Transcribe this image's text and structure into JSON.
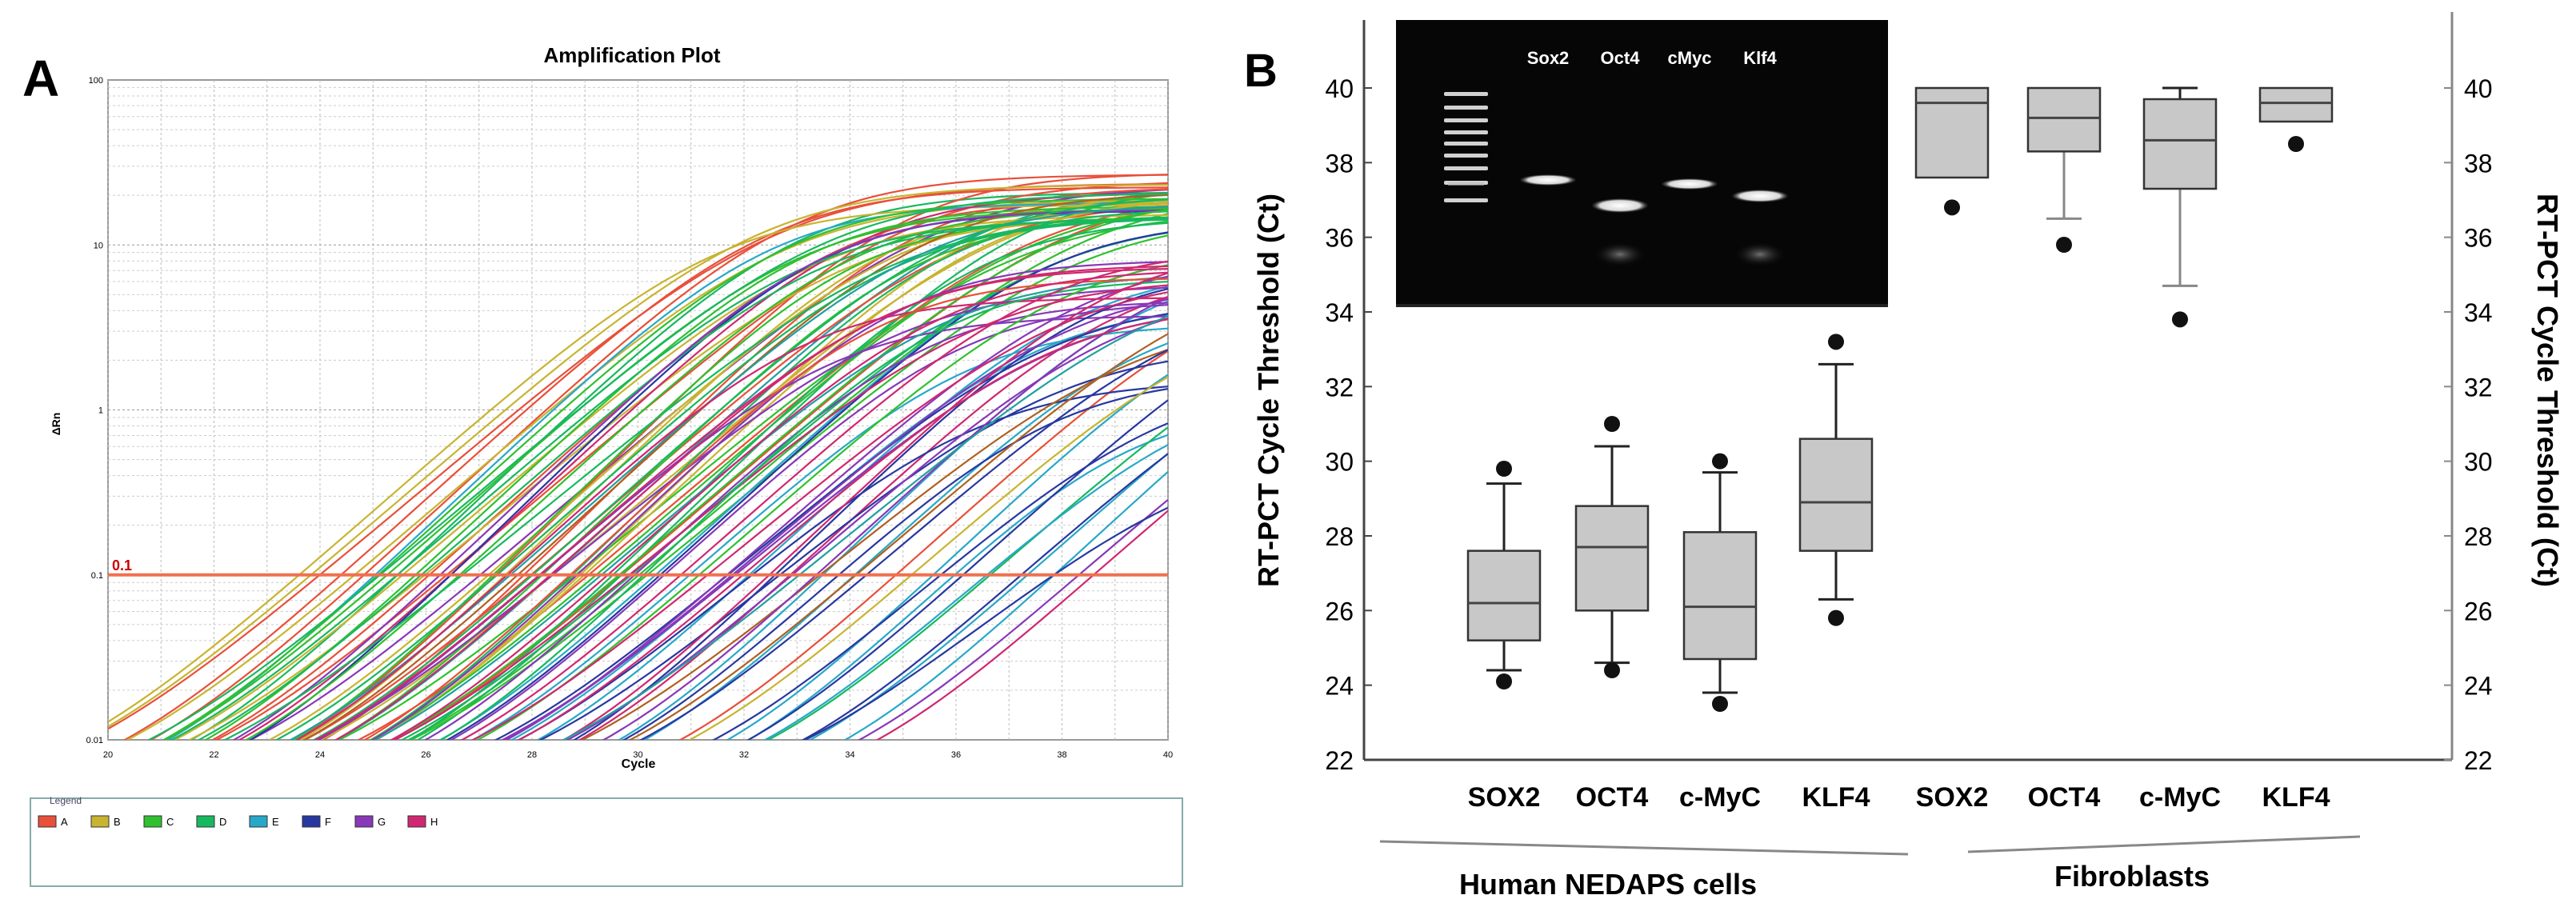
{
  "panel_a": {
    "letter": "A",
    "title": "Amplification Plot",
    "xlabel": "Cycle",
    "ylabel": "ΔRn",
    "threshold_label": "0.1",
    "x_ticks": [
      "20",
      "22",
      "24",
      "26",
      "28",
      "30",
      "32",
      "34",
      "36",
      "38",
      "40"
    ],
    "y_ticks": [
      "0.01",
      "0.1",
      "1",
      "10",
      "100"
    ],
    "legend_title": "Legend",
    "legend": [
      {
        "label": "A",
        "color": "#e8503a"
      },
      {
        "label": "B",
        "color": "#c8b430"
      },
      {
        "label": "C",
        "color": "#30c030"
      },
      {
        "label": "D",
        "color": "#18b860"
      },
      {
        "label": "E",
        "color": "#28a8c8"
      },
      {
        "label": "F",
        "color": "#2838a0"
      },
      {
        "label": "G",
        "color": "#8838b8"
      },
      {
        "label": "H",
        "color": "#d02870"
      }
    ]
  },
  "panel_b": {
    "letter": "B",
    "gel_labels": [
      "Sox2",
      "Oct4",
      "cMyc",
      "Klf4"
    ],
    "group_labels": [
      "Human NEDAPS cells",
      "Fibroblasts"
    ]
  },
  "chart_data": [
    {
      "type": "line",
      "title": "Amplification Plot",
      "xlabel": "Cycle",
      "ylabel": "ΔRn",
      "xlim": [
        20,
        40
      ],
      "ylim": [
        0.01,
        100
      ],
      "yscale": "log",
      "threshold": 0.1,
      "series_ct_ranges": [
        {
          "well": "A",
          "ct_range": [
            24.0,
            30.0
          ],
          "plateau": [
            18,
            28
          ]
        },
        {
          "well": "B",
          "ct_range": [
            23.5,
            29.5
          ],
          "plateau": [
            14,
            24
          ]
        },
        {
          "well": "C",
          "ct_range": [
            25.0,
            30.5
          ],
          "plateau": [
            14,
            22
          ]
        },
        {
          "well": "D",
          "ct_range": [
            25.0,
            30.5
          ],
          "plateau": [
            14,
            22
          ]
        },
        {
          "well": "E",
          "ct_range": [
            31.0,
            38.5
          ],
          "plateau": [
            0.5,
            8
          ]
        },
        {
          "well": "F",
          "ct_range": [
            31.5,
            38.5
          ],
          "plateau": [
            0.4,
            7
          ]
        },
        {
          "well": "G",
          "ct_range": [
            28.0,
            34.0
          ],
          "plateau": [
            3,
            10
          ]
        },
        {
          "well": "H",
          "ct_range": [
            27.5,
            33.0
          ],
          "plateau": [
            4,
            10
          ]
        }
      ]
    },
    {
      "type": "box",
      "ylabel": "RT-PCT Cycle Threshold (Ct)",
      "ylim": [
        22,
        41
      ],
      "y_ticks": [
        22,
        24,
        26,
        28,
        30,
        32,
        34,
        36,
        38,
        40
      ],
      "categories": [
        "SOX2",
        "OCT4",
        "c-MyC",
        "KLF4",
        "SOX2",
        "OCT4",
        "c-MyC",
        "KLF4"
      ],
      "groups": [
        {
          "name": "Human NEDAPS cells",
          "members": [
            "SOX2",
            "OCT4",
            "c-MyC",
            "KLF4"
          ]
        },
        {
          "name": "Fibroblasts",
          "members": [
            "SOX2",
            "OCT4",
            "c-MyC",
            "KLF4"
          ]
        }
      ],
      "boxes": [
        {
          "label": "SOX2",
          "whisker_low": 24.4,
          "q1": 25.2,
          "median": 26.2,
          "q3": 27.6,
          "whisker_high": 29.4,
          "outliers": [
            29.8,
            24.1
          ]
        },
        {
          "label": "OCT4",
          "whisker_low": 24.6,
          "q1": 26.0,
          "median": 27.7,
          "q3": 28.8,
          "whisker_high": 30.4,
          "outliers": [
            31.0,
            24.4
          ]
        },
        {
          "label": "c-MyC",
          "whisker_low": 23.8,
          "q1": 24.7,
          "median": 26.1,
          "q3": 28.1,
          "whisker_high": 29.7,
          "outliers": [
            30.0,
            23.5
          ]
        },
        {
          "label": "KLF4",
          "whisker_low": 26.3,
          "q1": 27.6,
          "median": 28.9,
          "q3": 30.6,
          "whisker_high": 32.6,
          "outliers": [
            33.2,
            25.8
          ]
        },
        {
          "label": "SOX2",
          "whisker_low": 37.6,
          "q1": 37.6,
          "median": 39.6,
          "q3": 40.0,
          "whisker_high": 40.0,
          "outliers": [
            36.8
          ]
        },
        {
          "label": "OCT4",
          "whisker_low": 36.5,
          "q1": 38.3,
          "median": 39.2,
          "q3": 40.0,
          "whisker_high": 40.0,
          "outliers": [
            35.8
          ]
        },
        {
          "label": "c-MyC",
          "whisker_low": 34.7,
          "q1": 37.3,
          "median": 38.6,
          "q3": 39.7,
          "whisker_high": 40.0,
          "outliers": [
            33.8
          ]
        },
        {
          "label": "KLF4",
          "whisker_low": 39.1,
          "q1": 39.1,
          "median": 39.6,
          "q3": 40.0,
          "whisker_high": 40.0,
          "outliers": [
            38.5
          ]
        }
      ]
    }
  ]
}
